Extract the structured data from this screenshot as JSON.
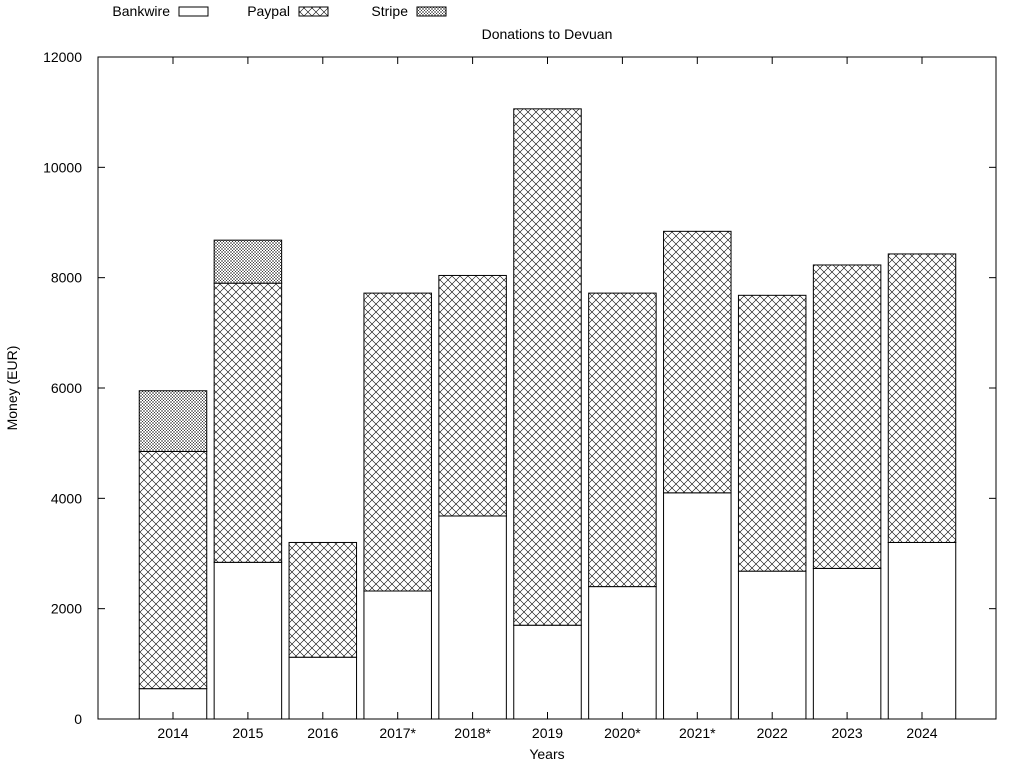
{
  "chart_data": {
    "type": "bar",
    "stacked": true,
    "title": "Donations to Devuan",
    "xlabel": "Years",
    "ylabel": "Money (EUR)",
    "ylim": [
      0,
      12000
    ],
    "yticks": [
      0,
      2000,
      4000,
      6000,
      8000,
      10000,
      12000
    ],
    "grid": false,
    "legend_position": "top-left",
    "categories": [
      "2014",
      "2015",
      "2016",
      "2017*",
      "2018*",
      "2019",
      "2020*",
      "2021*",
      "2022",
      "2023",
      "2024"
    ],
    "series": [
      {
        "name": "Bankwire",
        "pattern": "blank",
        "values": [
          550,
          2840,
          1120,
          2320,
          3680,
          1700,
          2400,
          4100,
          2680,
          2730,
          3200
        ]
      },
      {
        "name": "Paypal",
        "pattern": "crosshatch",
        "values": [
          4300,
          5060,
          2080,
          5400,
          4360,
          9360,
          5320,
          4740,
          5000,
          5500,
          5230
        ]
      },
      {
        "name": "Stripe",
        "pattern": "dots",
        "values": [
          1100,
          780,
          0,
          0,
          0,
          0,
          0,
          0,
          0,
          0,
          0
        ]
      }
    ]
  }
}
